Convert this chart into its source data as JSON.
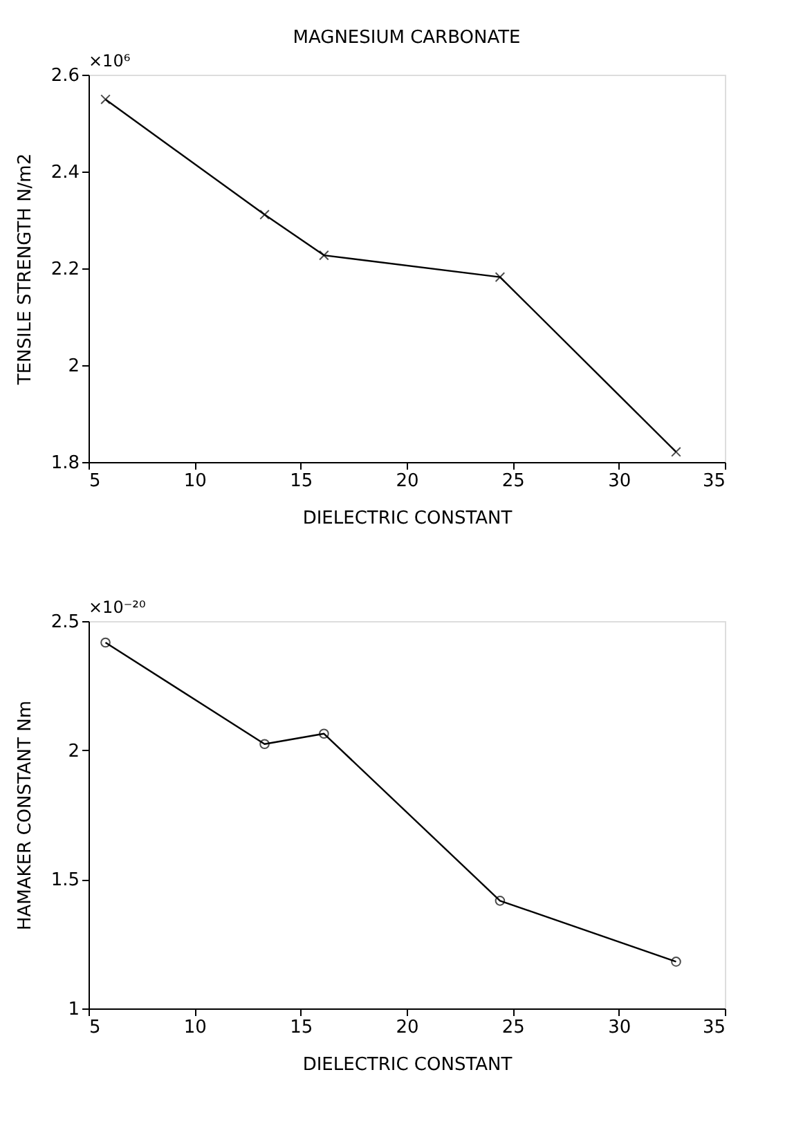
{
  "chart_data": [
    {
      "type": "line",
      "title": "MAGNESIUM CARBONATE",
      "xlabel": "DIELECTRIC CONSTANT",
      "ylabel": "TENSILE STRENGTH  N/m2",
      "annotations": [
        "×10⁶"
      ],
      "x": [
        5.8,
        13.3,
        16.1,
        24.4,
        32.7
      ],
      "series": [
        {
          "color": "#000000",
          "values": [
            2.549,
            2.311,
            2.227,
            2.182,
            1.821
          ]
        }
      ],
      "xlim": [
        5,
        35
      ],
      "xticks": [
        5,
        10,
        15,
        20,
        25,
        30,
        35
      ],
      "ylim": [
        1.8,
        2.6
      ],
      "yticks": [
        1.8,
        2,
        2.2,
        2.4,
        2.6
      ],
      "grid": false,
      "marker": "cross",
      "line_style": "solid"
    },
    {
      "type": "line",
      "xlabel": "DIELECTRIC CONSTANT",
      "ylabel": "HAMAKER CONSTANT  Nm",
      "annotations": [
        "×10⁻²⁰"
      ],
      "x": [
        5.8,
        13.3,
        16.1,
        24.4,
        32.7
      ],
      "series": [
        {
          "color": "#000000",
          "values": [
            2.417,
            2.024,
            2.064,
            1.417,
            1.181
          ]
        }
      ],
      "xlim": [
        5,
        35
      ],
      "xticks": [
        5,
        10,
        15,
        20,
        25,
        30,
        35
      ],
      "ylim": [
        1,
        2.5
      ],
      "yticks": [
        1,
        1.5,
        2,
        2.5
      ],
      "grid": false,
      "marker": "circle",
      "line_style": "solid"
    }
  ]
}
